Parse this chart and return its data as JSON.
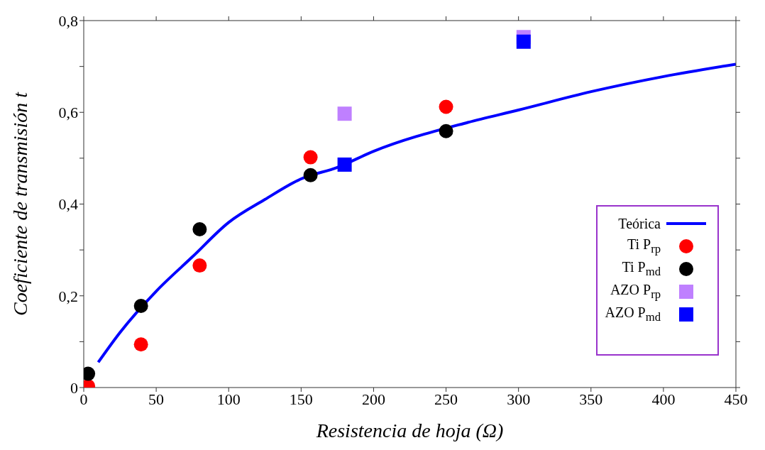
{
  "chart_data": {
    "type": "scatter",
    "xlabel": "Resistencia de hoja (Ω)",
    "ylabel": "Coeficiente de transmisión t",
    "xlim": [
      0,
      450
    ],
    "xticks": [
      0,
      50,
      100,
      150,
      200,
      250,
      300,
      350,
      400,
      450
    ],
    "ylim": [
      0,
      0.8
    ],
    "yticks": [
      {
        "value": 0,
        "label": "0"
      },
      {
        "value": 0.1,
        "label": null
      },
      {
        "value": 0.2,
        "label": "0,2"
      },
      {
        "value": 0.3,
        "label": null
      },
      {
        "value": 0.4,
        "label": "0,4"
      },
      {
        "value": 0.5,
        "label": null
      },
      {
        "value": 0.6,
        "label": "0,6"
      },
      {
        "value": 0.7,
        "label": null
      },
      {
        "value": 0.8,
        "label": "0,8"
      }
    ],
    "grid": false,
    "legend": "bottom right",
    "series": [
      {
        "name": "Teórica",
        "type": "line",
        "marker": "none",
        "line_style": "solid",
        "color": "#0000ff",
        "x": [
          10,
          25,
          50,
          75,
          100,
          125,
          150,
          175,
          200,
          265,
          300,
          350,
          400,
          450
        ],
        "values": [
          0.055,
          0.12,
          0.21,
          0.285,
          0.36,
          0.41,
          0.455,
          0.48,
          0.515,
          0.578,
          0.605,
          0.645,
          0.678,
          0.705
        ]
      },
      {
        "name": "Ti P$_{rp}$",
        "marker": "circle",
        "color": "#ff0000",
        "x": [
          3,
          39.5,
          80,
          156.5,
          250
        ],
        "values": [
          0.003,
          0.094,
          0.266,
          0.502,
          0.612
        ]
      },
      {
        "name": "Ti P$_{md}$",
        "marker": "circle",
        "color": "#000000",
        "x": [
          3,
          39.5,
          80,
          156.5,
          250
        ],
        "values": [
          0.03,
          0.178,
          0.345,
          0.463,
          0.559
        ]
      },
      {
        "name": "AZO P$_{rp}$",
        "marker": "square",
        "color": "#bf80ff",
        "x": [
          180,
          303.5
        ],
        "values": [
          0.597,
          0.764
        ]
      },
      {
        "name": "AZO P$_{md}$",
        "marker": "square",
        "color": "#0000ff",
        "x": [
          180,
          303.5
        ],
        "values": [
          0.486,
          0.754
        ]
      }
    ]
  }
}
